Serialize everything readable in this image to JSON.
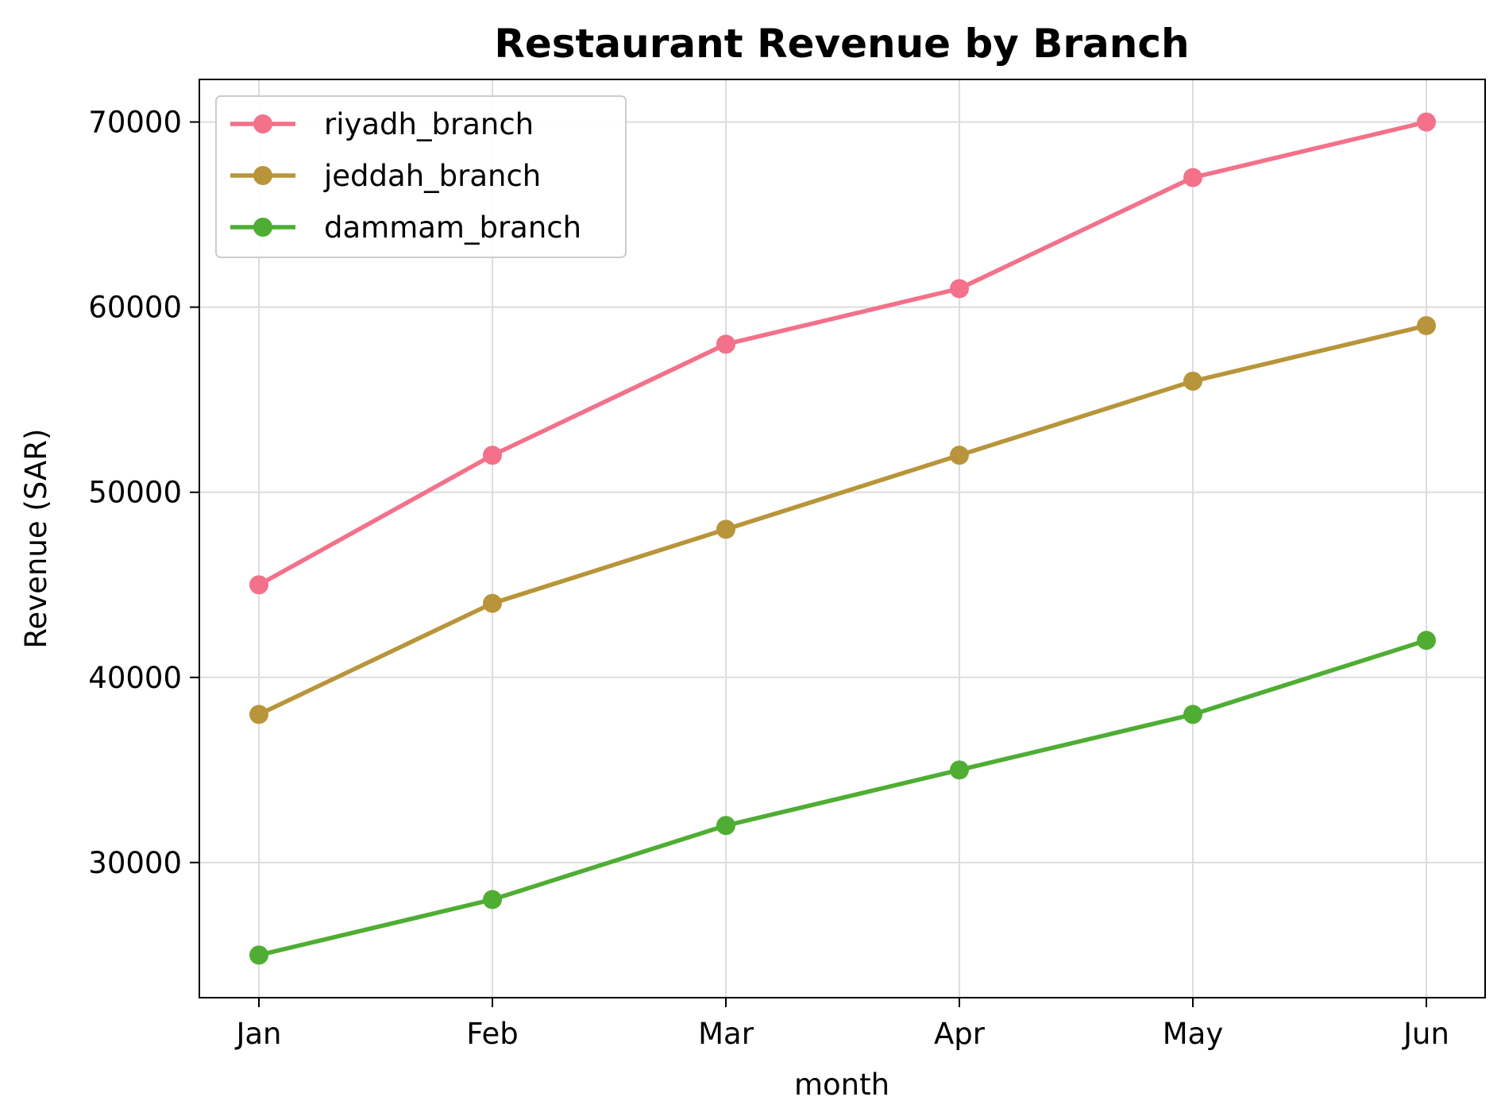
{
  "chart_data": {
    "type": "line",
    "title": "Restaurant Revenue by Branch",
    "xlabel": "month",
    "ylabel": "Revenue (SAR)",
    "categories": [
      "Jan",
      "Feb",
      "Mar",
      "Apr",
      "May",
      "Jun"
    ],
    "y_ticks": [
      30000,
      40000,
      50000,
      60000,
      70000
    ],
    "ylim": [
      22700,
      72300
    ],
    "grid": true,
    "legend_position": "top-left",
    "series": [
      {
        "name": "riyadh_branch",
        "color": "#f3718a",
        "values": [
          45000,
          52000,
          58000,
          61000,
          67000,
          70000
        ]
      },
      {
        "name": "jeddah_branch",
        "color": "#b8953a",
        "values": [
          38000,
          44000,
          48000,
          52000,
          56000,
          59000
        ]
      },
      {
        "name": "dammam_branch",
        "color": "#4fad33",
        "values": [
          25000,
          28000,
          32000,
          35000,
          38000,
          42000
        ]
      }
    ]
  }
}
